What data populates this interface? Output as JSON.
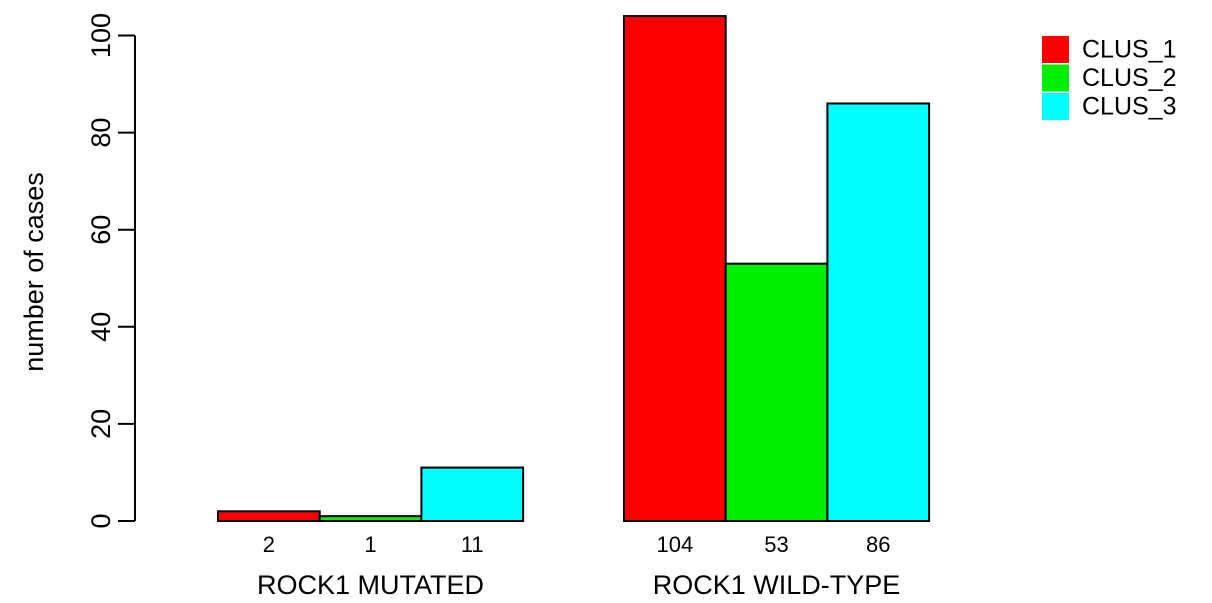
{
  "chart_data": {
    "type": "bar",
    "title": "",
    "xlabel": "",
    "ylabel": "number of cases",
    "ylim": [
      0,
      104
    ],
    "yticks": [
      0,
      20,
      40,
      60,
      80,
      100
    ],
    "grid": false,
    "legend_position": "top-right",
    "groups": [
      "ROCK1 MUTATED",
      "ROCK1 WILD-TYPE"
    ],
    "series": [
      {
        "name": "CLUS_1",
        "color": "#ff0000",
        "values": [
          2,
          104
        ]
      },
      {
        "name": "CLUS_2",
        "color": "#00ee00",
        "values": [
          1,
          53
        ]
      },
      {
        "name": "CLUS_3",
        "color": "#00ffff",
        "values": [
          11,
          86
        ]
      }
    ],
    "bar_value_labels": [
      [
        "2",
        "1",
        "11"
      ],
      [
        "104",
        "53",
        "86"
      ]
    ]
  }
}
